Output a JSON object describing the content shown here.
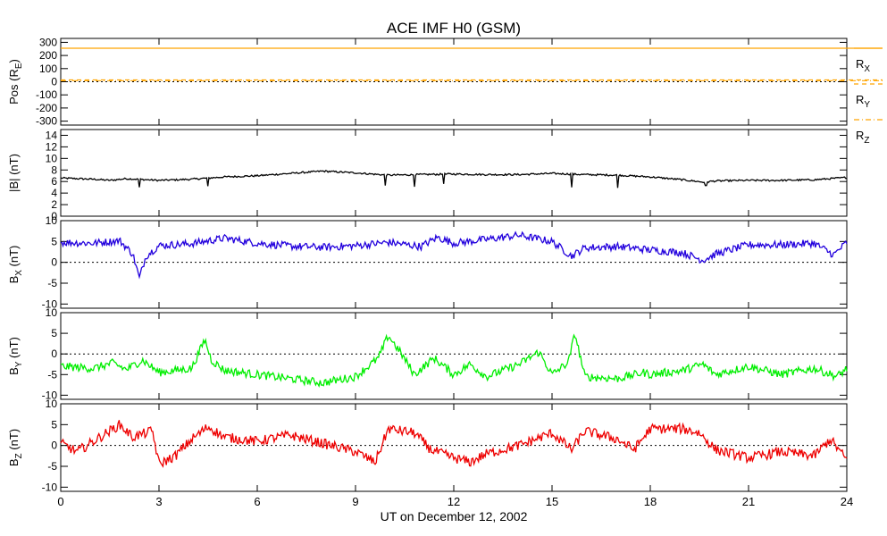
{
  "title": "ACE IMF H0 (GSM)",
  "colors": {
    "pos": "#ffa500",
    "bmag": "#000000",
    "bx": "#2200dd",
    "by": "#00ee00",
    "bz": "#ee0000"
  },
  "chart_data": {
    "type": "line",
    "x": {
      "label": "UT on December 12, 2002",
      "range": [
        0,
        24
      ],
      "ticks": [
        "0",
        "3",
        "6",
        "9",
        "12",
        "15",
        "18",
        "21",
        "24"
      ]
    },
    "panels": [
      {
        "id": "pos",
        "ylabel": "Pos (R<sub>E</sub>)",
        "ylabel_main": "Pos (R",
        "ylabel_sub": "E",
        "ylabel_tail": ")",
        "ylim": [
          -330,
          330
        ],
        "yticks": [
          300,
          200,
          100,
          0,
          -100,
          -200,
          -300
        ],
        "ytick_labels": [
          "300",
          "200",
          "100",
          "0",
          "-100",
          "-200",
          "-300"
        ],
        "zero_line": true,
        "series": [
          {
            "name": "RX",
            "label_main": "R",
            "label_sub": "X",
            "style": "solid",
            "color": "#ffa500",
            "knots": [
              [
                0,
                255
              ],
              [
                24,
                255
              ]
            ]
          },
          {
            "name": "RY",
            "label_main": "R",
            "label_sub": "Y",
            "style": "dashed",
            "color": "#ffa500",
            "knots": [
              [
                0,
                14
              ],
              [
                24,
                14
              ]
            ]
          },
          {
            "name": "RZ",
            "label_main": "R",
            "label_sub": "Z",
            "style": "dashdot",
            "color": "#ffa500",
            "knots": [
              [
                0,
                8
              ],
              [
                24,
                8
              ]
            ]
          }
        ]
      },
      {
        "id": "bmag",
        "ylabel_main": "|B| (nT)",
        "ylim": [
          0,
          15
        ],
        "yticks": [
          14,
          12,
          10,
          8,
          6,
          4,
          2,
          0
        ],
        "ytick_labels": [
          "14",
          "12",
          "10",
          "8",
          "6",
          "4",
          "2",
          "0"
        ],
        "zero_line": false,
        "series": [
          {
            "name": "|B|",
            "color": "#000000",
            "noise": 0.15,
            "knots": [
              [
                0,
                6.6
              ],
              [
                1,
                6.4
              ],
              [
                1.5,
                6.2
              ],
              [
                2,
                6.5
              ],
              [
                3,
                6.2
              ],
              [
                4,
                6.4
              ],
              [
                5,
                6.8
              ],
              [
                6,
                7.0
              ],
              [
                7,
                7.4
              ],
              [
                8,
                7.8
              ],
              [
                9,
                7.5
              ],
              [
                10,
                7.1
              ],
              [
                11,
                7.2
              ],
              [
                12,
                7.3
              ],
              [
                13,
                7.2
              ],
              [
                14,
                7.2
              ],
              [
                15,
                7.4
              ],
              [
                16,
                7.2
              ],
              [
                17,
                7.1
              ],
              [
                18,
                6.8
              ],
              [
                19,
                6.3
              ],
              [
                19.6,
                5.9
              ],
              [
                20,
                6.1
              ],
              [
                21,
                6.2
              ],
              [
                22,
                6.2
              ],
              [
                23,
                6.3
              ],
              [
                24,
                6.7
              ]
            ],
            "spikes": [
              [
                2.4,
                5.0
              ],
              [
                4.5,
                5.2
              ],
              [
                9.9,
                5.3
              ],
              [
                10.8,
                5.1
              ],
              [
                11.7,
                5.6
              ],
              [
                15.6,
                5.0
              ],
              [
                17.0,
                4.9
              ],
              [
                19.7,
                5.3
              ]
            ]
          }
        ]
      },
      {
        "id": "bx",
        "ylabel_main": "B",
        "ylabel_sub": "X",
        "ylabel_tail": " (nT)",
        "ylim": [
          -11,
          10
        ],
        "yticks": [
          10,
          5,
          0,
          -5,
          -10
        ],
        "ytick_labels": [
          "10",
          "5",
          "0",
          "-5",
          "-10"
        ],
        "zero_line": true,
        "series": [
          {
            "name": "BX",
            "color": "#2200dd",
            "noise": 0.9,
            "knots": [
              [
                0,
                4.8
              ],
              [
                1,
                4.6
              ],
              [
                1.8,
                5.2
              ],
              [
                2.2,
                2.0
              ],
              [
                2.4,
                -3.8
              ],
              [
                2.6,
                1.5
              ],
              [
                3,
                4.0
              ],
              [
                4,
                4.5
              ],
              [
                5,
                5.8
              ],
              [
                6,
                4.6
              ],
              [
                7,
                3.9
              ],
              [
                8,
                3.6
              ],
              [
                9,
                4.0
              ],
              [
                10,
                4.8
              ],
              [
                11,
                3.8
              ],
              [
                11.5,
                6.0
              ],
              [
                12,
                4.6
              ],
              [
                13,
                5.5
              ],
              [
                14,
                6.5
              ],
              [
                15,
                5.0
              ],
              [
                15.6,
                1.5
              ],
              [
                16,
                3.5
              ],
              [
                17,
                3.8
              ],
              [
                18,
                3.0
              ],
              [
                19,
                2.3
              ],
              [
                19.6,
                0.5
              ],
              [
                20,
                2.0
              ],
              [
                21,
                4.2
              ],
              [
                22,
                4.2
              ],
              [
                23,
                4.6
              ],
              [
                23.6,
                1.8
              ],
              [
                24,
                4.8
              ]
            ]
          }
        ]
      },
      {
        "id": "by",
        "ylabel_main": "B",
        "ylabel_sub": "Y",
        "ylabel_tail": " (nT)",
        "ylim": [
          -11,
          10
        ],
        "yticks": [
          10,
          5,
          0,
          -5,
          -10
        ],
        "ytick_labels": [
          "10",
          "5",
          "0",
          "-5",
          "-10"
        ],
        "zero_line": true,
        "series": [
          {
            "name": "BY",
            "color": "#00ee00",
            "noise": 1.0,
            "knots": [
              [
                0,
                -3.0
              ],
              [
                1,
                -3.5
              ],
              [
                1.6,
                -2.2
              ],
              [
                2,
                -3.8
              ],
              [
                2.5,
                -1.5
              ],
              [
                3,
                -4.5
              ],
              [
                4,
                -3.5
              ],
              [
                4.4,
                3.5
              ],
              [
                4.6,
                -1.5
              ],
              [
                5,
                -4.0
              ],
              [
                6,
                -5.0
              ],
              [
                7,
                -6.0
              ],
              [
                8,
                -7.0
              ],
              [
                9,
                -5.5
              ],
              [
                9.7,
                -1.0
              ],
              [
                10,
                4.5
              ],
              [
                10.4,
                0.0
              ],
              [
                10.8,
                -5.0
              ],
              [
                11.4,
                -1.0
              ],
              [
                12,
                -5.0
              ],
              [
                12.5,
                -2.5
              ],
              [
                13,
                -5.5
              ],
              [
                14,
                -2.5
              ],
              [
                14.6,
                0.5
              ],
              [
                15,
                -5.0
              ],
              [
                15.5,
                -2.0
              ],
              [
                15.7,
                5.0
              ],
              [
                16,
                -5.5
              ],
              [
                17,
                -6.0
              ],
              [
                17.8,
                -4.5
              ],
              [
                18,
                -5.0
              ],
              [
                19,
                -4.0
              ],
              [
                19.6,
                -2.5
              ],
              [
                20,
                -5.0
              ],
              [
                21,
                -3.0
              ],
              [
                22,
                -5.0
              ],
              [
                23,
                -3.5
              ],
              [
                23.7,
                -5.5
              ],
              [
                24,
                -3.5
              ]
            ]
          }
        ]
      },
      {
        "id": "bz",
        "ylabel_main": "B",
        "ylabel_sub": "Z",
        "ylabel_tail": " (nT)",
        "ylim": [
          -11,
          10
        ],
        "yticks": [
          10,
          5,
          0,
          -5,
          -10
        ],
        "ytick_labels": [
          "10",
          "5",
          "0",
          "-5",
          "-10"
        ],
        "zero_line": true,
        "xaxis_labels": true,
        "series": [
          {
            "name": "BZ",
            "color": "#ee0000",
            "noise": 1.2,
            "knots": [
              [
                0,
                0.5
              ],
              [
                0.5,
                -1.5
              ],
              [
                1,
                1.0
              ],
              [
                1.8,
                5.0
              ],
              [
                2.2,
                2.0
              ],
              [
                2.8,
                3.5
              ],
              [
                3,
                -4.5
              ],
              [
                3.5,
                -2.5
              ],
              [
                4,
                1.5
              ],
              [
                4.5,
                4.5
              ],
              [
                5,
                2.0
              ],
              [
                6,
                1.0
              ],
              [
                7,
                2.5
              ],
              [
                8,
                0.5
              ],
              [
                9,
                -1.5
              ],
              [
                9.6,
                -4.0
              ],
              [
                10,
                4.0
              ],
              [
                10.8,
                3.0
              ],
              [
                11.3,
                -1.0
              ],
              [
                12,
                -3.0
              ],
              [
                12.5,
                -4.0
              ],
              [
                13,
                -2.0
              ],
              [
                14,
                0.0
              ],
              [
                15,
                3.0
              ],
              [
                15.6,
                -1.0
              ],
              [
                16,
                3.5
              ],
              [
                17,
                1.5
              ],
              [
                17.5,
                -1.0
              ],
              [
                18,
                4.0
              ],
              [
                19,
                4.0
              ],
              [
                19.5,
                3.0
              ],
              [
                20,
                -1.0
              ],
              [
                21,
                -3.0
              ],
              [
                22,
                -1.5
              ],
              [
                23,
                -2.5
              ],
              [
                23.5,
                1.5
              ],
              [
                24,
                -3.5
              ]
            ]
          }
        ]
      }
    ]
  }
}
